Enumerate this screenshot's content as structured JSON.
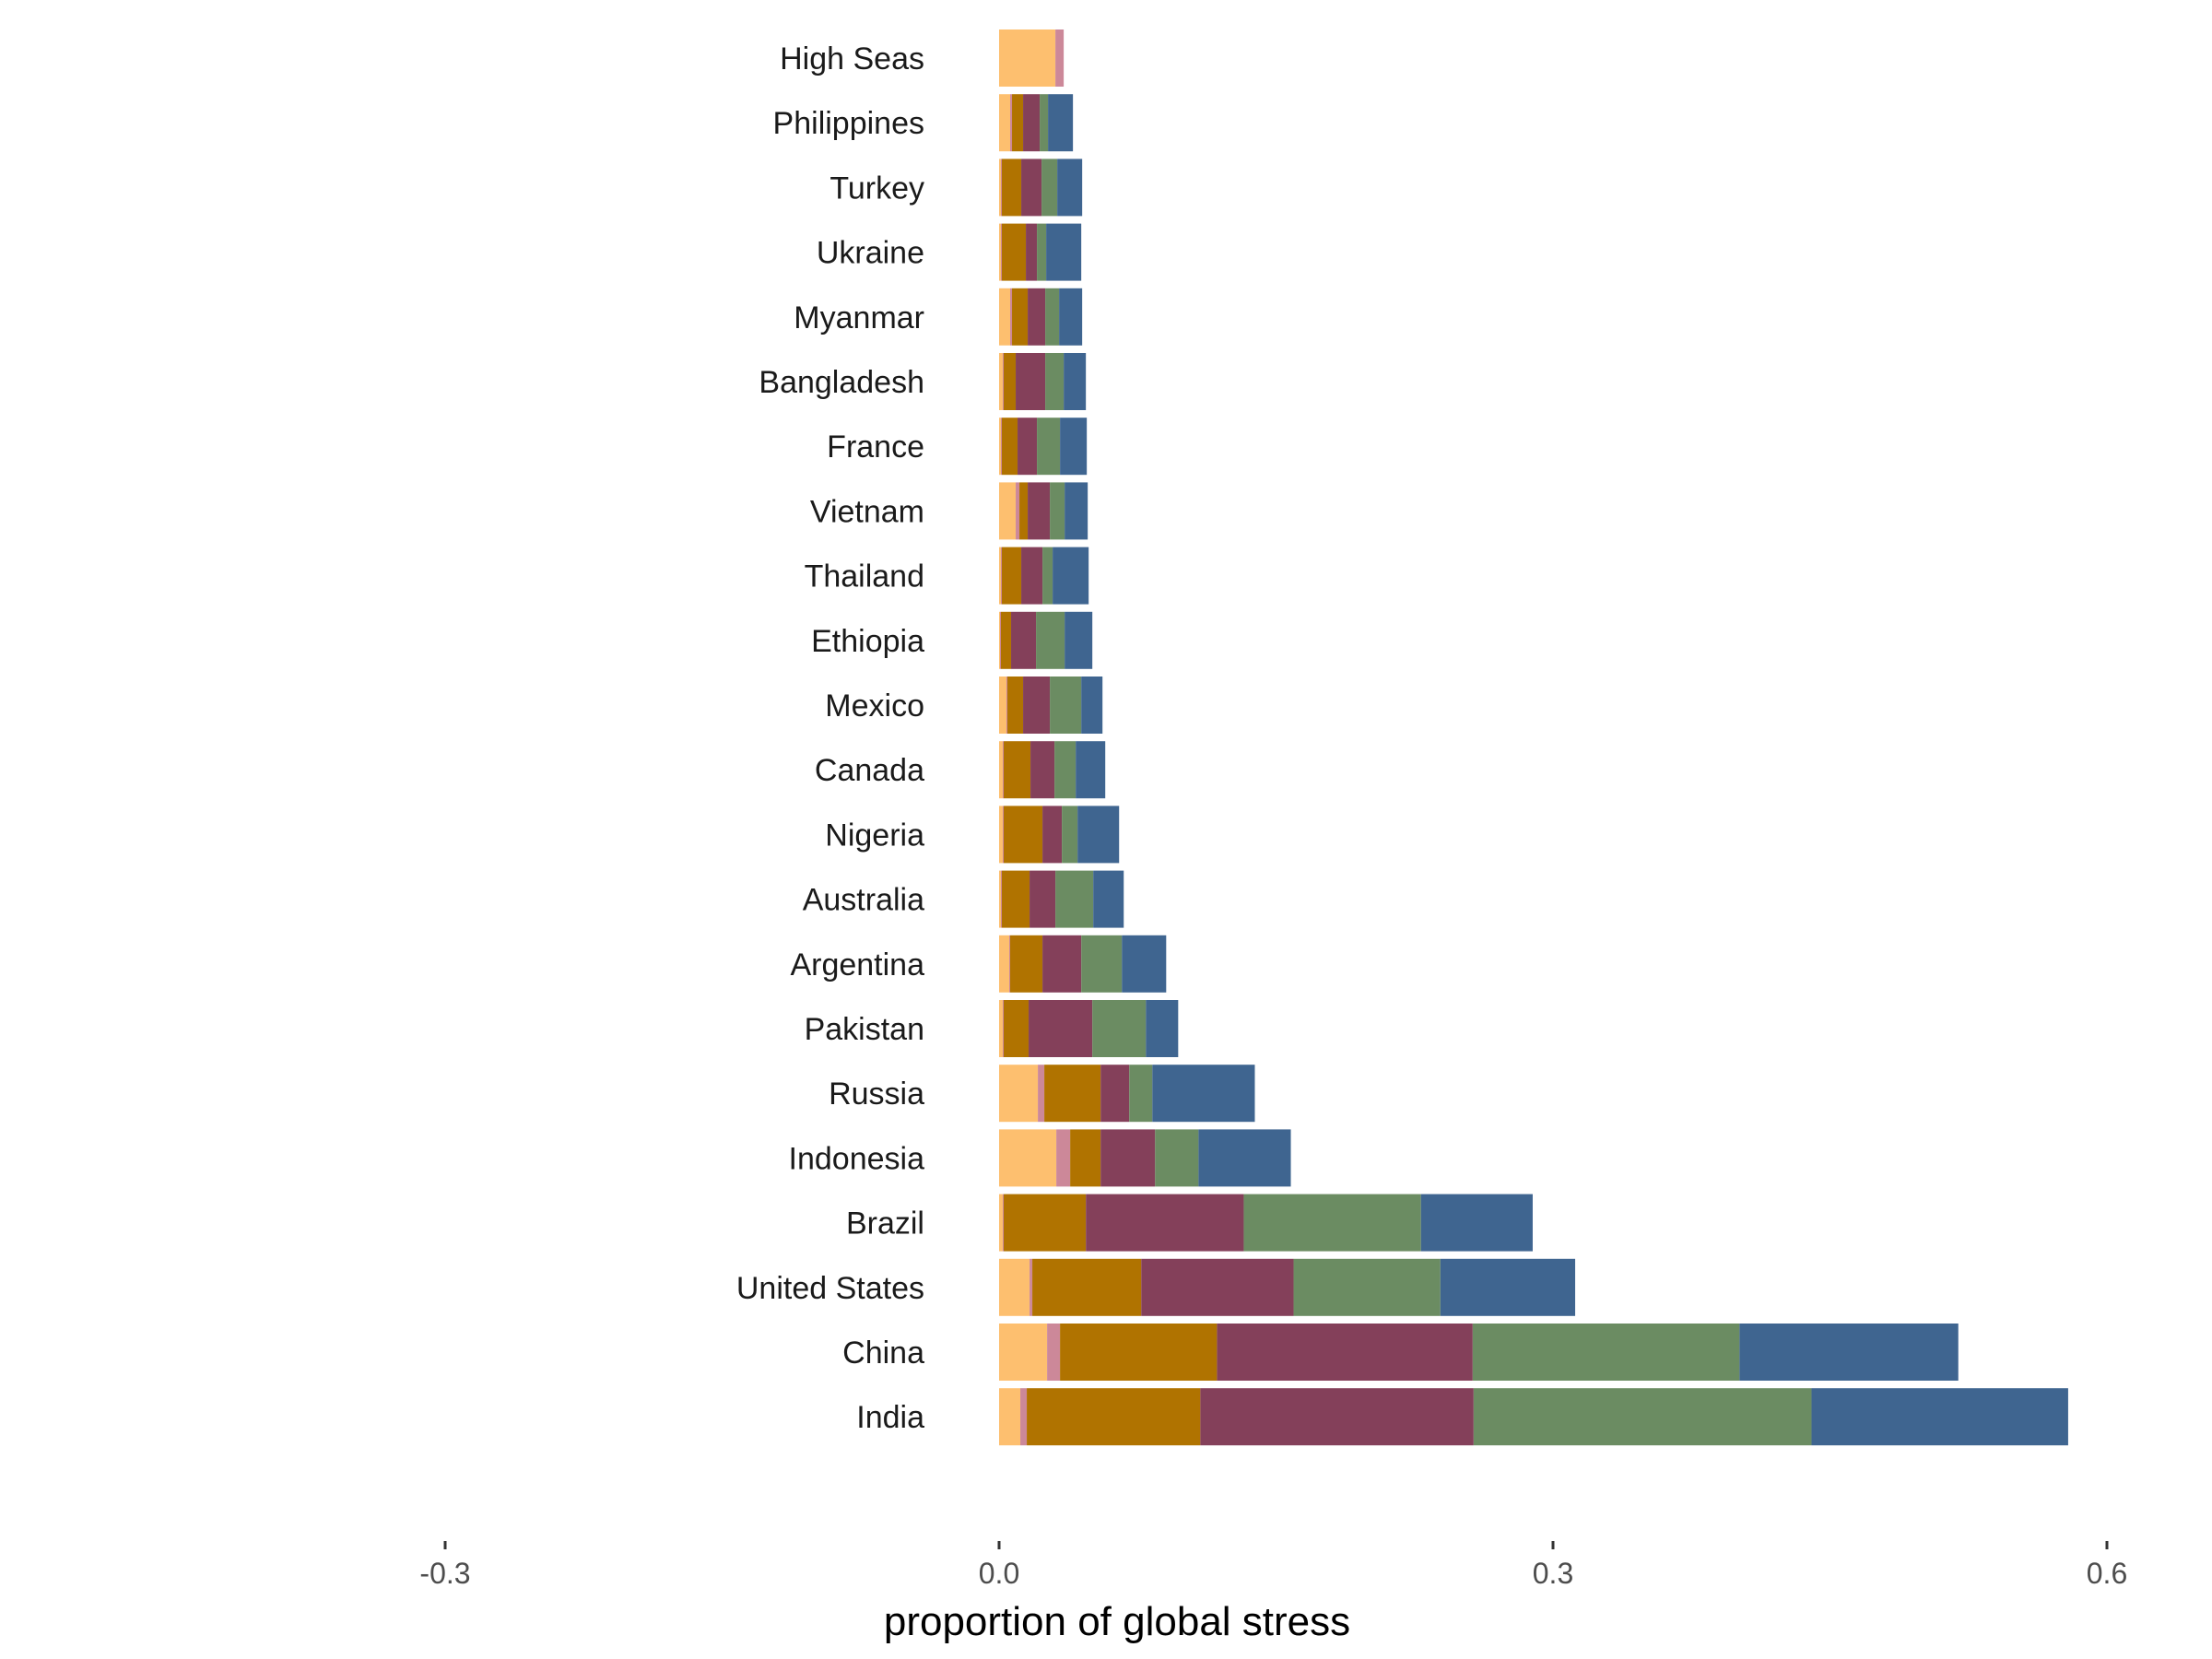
{
  "chart_data": {
    "type": "bar",
    "orientation": "horizontal",
    "stacked": true,
    "title": "",
    "xlabel": "proportion of global stress",
    "ylabel": "",
    "xlim": [
      -0.3,
      0.6
    ],
    "x_ticks": [
      -0.3,
      0.0,
      0.3,
      0.6
    ],
    "x_tick_labels": [
      "-0.3",
      "0.0",
      "0.3",
      "0.6"
    ],
    "grid": false,
    "legend": "none",
    "highlight_color": "#e41a1c",
    "label_color": "#1a1a1a",
    "segment_colors": [
      "#fdbf6f",
      "#cc8899",
      "#b07300",
      "#84405a",
      "#6b8c62",
      "#3f6590"
    ],
    "categories": [
      {
        "name": "High Seas",
        "highlight": true,
        "values": [
          0.0305,
          0.0045,
          0,
          0,
          0,
          0
        ]
      },
      {
        "name": "Philippines",
        "highlight": false,
        "values": [
          0.006,
          0.001,
          0.006,
          0.009,
          0.0045,
          0.0135
        ]
      },
      {
        "name": "Turkey",
        "highlight": false,
        "values": [
          0.001,
          0.0005,
          0.0105,
          0.011,
          0.0085,
          0.0135
        ]
      },
      {
        "name": "Ukraine",
        "highlight": false,
        "values": [
          0.001,
          0.0005,
          0.013,
          0.006,
          0.005,
          0.019
        ]
      },
      {
        "name": "Myanmar",
        "highlight": false,
        "values": [
          0.006,
          0.001,
          0.0085,
          0.0095,
          0.0075,
          0.0125
        ]
      },
      {
        "name": "Bangladesh",
        "highlight": false,
        "values": [
          0.002,
          0.0005,
          0.0065,
          0.016,
          0.01,
          0.012
        ]
      },
      {
        "name": "France",
        "highlight": false,
        "values": [
          0.001,
          0.0005,
          0.0085,
          0.0105,
          0.0125,
          0.0145
        ]
      },
      {
        "name": "Vietnam",
        "highlight": false,
        "values": [
          0.009,
          0.002,
          0.0045,
          0.012,
          0.008,
          0.0125
        ]
      },
      {
        "name": "Thailand",
        "highlight": false,
        "values": [
          0.001,
          0.0005,
          0.0105,
          0.0115,
          0.0055,
          0.0195
        ]
      },
      {
        "name": "Ethiopia",
        "highlight": false,
        "values": [
          0.0005,
          0.0005,
          0.0055,
          0.0135,
          0.0155,
          0.015
        ]
      },
      {
        "name": "Mexico",
        "highlight": false,
        "values": [
          0.004,
          0.0005,
          0.0085,
          0.0145,
          0.017,
          0.0115
        ]
      },
      {
        "name": "Canada",
        "highlight": false,
        "values": [
          0.002,
          0.0005,
          0.0145,
          0.013,
          0.0115,
          0.016
        ]
      },
      {
        "name": "Nigeria",
        "highlight": false,
        "values": [
          0.002,
          0.0005,
          0.021,
          0.0105,
          0.0085,
          0.0225
        ]
      },
      {
        "name": "Australia",
        "highlight": false,
        "values": [
          0.001,
          0.0005,
          0.015,
          0.014,
          0.0205,
          0.0165
        ]
      },
      {
        "name": "Argentina",
        "highlight": false,
        "values": [
          0.0055,
          0.0005,
          0.0175,
          0.021,
          0.022,
          0.024
        ]
      },
      {
        "name": "Pakistan",
        "highlight": false,
        "values": [
          0.002,
          0.0005,
          0.0135,
          0.0345,
          0.029,
          0.0175
        ]
      },
      {
        "name": "Russia",
        "highlight": false,
        "values": [
          0.021,
          0.0035,
          0.0305,
          0.0155,
          0.0125,
          0.0555
        ]
      },
      {
        "name": "Indonesia",
        "highlight": false,
        "values": [
          0.031,
          0.0075,
          0.0165,
          0.0295,
          0.0235,
          0.05
        ]
      },
      {
        "name": "Brazil",
        "highlight": false,
        "values": [
          0.002,
          0.0005,
          0.0445,
          0.0855,
          0.096,
          0.0605
        ]
      },
      {
        "name": "United States",
        "highlight": false,
        "values": [
          0.0165,
          0.0015,
          0.059,
          0.0825,
          0.0795,
          0.073
        ]
      },
      {
        "name": "China",
        "highlight": false,
        "values": [
          0.026,
          0.007,
          0.085,
          0.1385,
          0.1445,
          0.1185
        ]
      },
      {
        "name": "India",
        "highlight": false,
        "values": [
          0.0115,
          0.0035,
          0.094,
          0.148,
          0.183,
          0.139
        ]
      }
    ]
  }
}
